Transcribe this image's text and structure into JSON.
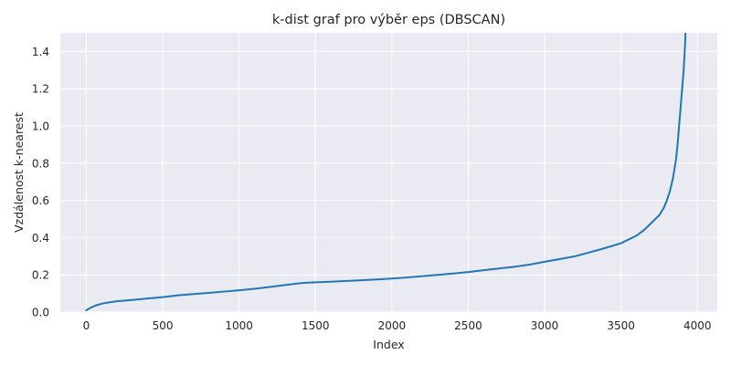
{
  "chart_data": {
    "type": "line",
    "title": "k-dist graf pro výběr eps (DBSCAN)",
    "xlabel": "Index",
    "ylabel": "Vzdálenost k-nearest",
    "xlim": [
      -170,
      4130
    ],
    "ylim": [
      0,
      1.5
    ],
    "x_ticks": [
      0,
      500,
      1000,
      1500,
      2000,
      2500,
      3000,
      3500,
      4000
    ],
    "y_ticks": [
      0.0,
      0.2,
      0.4,
      0.6,
      0.8,
      1.0,
      1.2,
      1.4
    ],
    "x_tick_labels": [
      "0",
      "500",
      "1000",
      "1500",
      "2000",
      "2500",
      "3000",
      "3500",
      "4000"
    ],
    "y_tick_labels": [
      "0.0",
      "0.2",
      "0.4",
      "0.6",
      "0.8",
      "1.0",
      "1.2",
      "1.4"
    ],
    "grid": true,
    "colors": {
      "line": "#1f77b4",
      "background": "#eaeaf2",
      "grid": "#ffffff"
    },
    "series": [
      {
        "x": [
          0,
          20,
          60,
          100,
          150,
          200,
          300,
          400,
          500,
          600,
          700,
          800,
          900,
          1000,
          1100,
          1200,
          1300,
          1400,
          1450,
          1500,
          1600,
          1700,
          1800,
          1900,
          2000,
          2100,
          2200,
          2300,
          2400,
          2500,
          2600,
          2700,
          2800,
          2900,
          3000,
          3100,
          3200,
          3300,
          3400,
          3500,
          3550,
          3600,
          3650,
          3700,
          3750,
          3780,
          3800,
          3820,
          3840,
          3860,
          3870,
          3880,
          3890,
          3900,
          3910,
          3920,
          3925,
          3930
        ],
        "values": [
          0.01,
          0.02,
          0.035,
          0.045,
          0.052,
          0.058,
          0.065,
          0.073,
          0.08,
          0.09,
          0.097,
          0.103,
          0.11,
          0.117,
          0.125,
          0.135,
          0.145,
          0.155,
          0.158,
          0.16,
          0.163,
          0.167,
          0.171,
          0.175,
          0.18,
          0.186,
          0.193,
          0.2,
          0.207,
          0.215,
          0.225,
          0.234,
          0.243,
          0.255,
          0.27,
          0.285,
          0.3,
          0.322,
          0.345,
          0.37,
          0.39,
          0.41,
          0.44,
          0.48,
          0.52,
          0.56,
          0.6,
          0.65,
          0.72,
          0.82,
          0.9,
          1.0,
          1.1,
          1.2,
          1.3,
          1.45,
          1.6,
          1.8
        ]
      }
    ]
  }
}
